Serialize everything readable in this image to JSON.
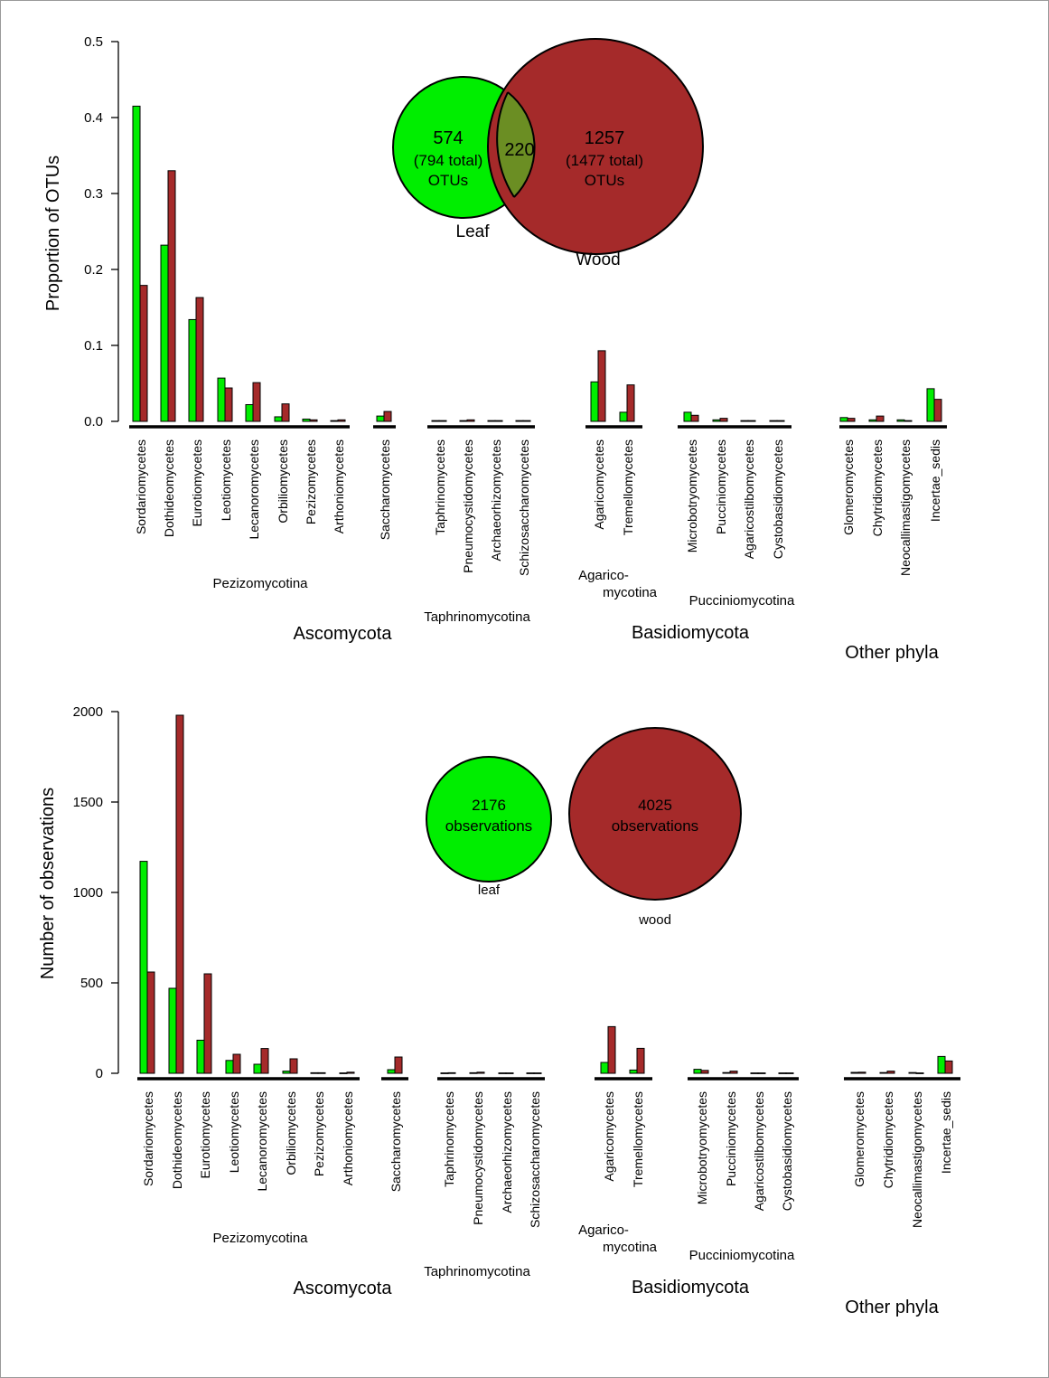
{
  "colors": {
    "leaf": "#00ee00",
    "wood": "#a52a2a",
    "overlap": "#6b8e23"
  },
  "chart_data": [
    {
      "type": "bar",
      "title": "",
      "ylabel": "Proportion of OTUs",
      "ylim": [
        0,
        0.5
      ],
      "yticks": [
        "0.0",
        "0.1",
        "0.2",
        "0.3",
        "0.4",
        "0.5"
      ],
      "series_names": [
        "Leaf",
        "Wood"
      ],
      "categories": [
        "Sordariomycetes",
        "Dothideomycetes",
        "Eurotiomycetes",
        "Leotiomycetes",
        "Lecanoromycetes",
        "Orbiliomycetes",
        "Pezizomycetes",
        "Arthoniomycetes",
        "Saccharomycetes",
        "Taphrinomycetes",
        "Pneumocystidomycetes",
        "Archaeorhizomycetes",
        "Schizosaccharomycetes",
        "Agaricomycetes",
        "Tremellomycetes",
        "Microbotryomycetes",
        "Pucciniomycetes",
        "Agaricostilbomycetes",
        "Cystobasidiomycetes",
        "Glomeromycetes",
        "Chytridiomycetes",
        "Neocallimastigomycetes",
        "Incertae_sedis"
      ],
      "series": [
        {
          "values": [
            0.415,
            0.232,
            0.134,
            0.057,
            0.022,
            0.006,
            0.003,
            0.001,
            0.007,
            0.001,
            0.001,
            0.001,
            0.001,
            0.052,
            0.012,
            0.012,
            0.002,
            0.001,
            0.001,
            0.005,
            0.002,
            0.002,
            0.043
          ]
        },
        {
          "values": [
            0.179,
            0.33,
            0.163,
            0.044,
            0.051,
            0.023,
            0.002,
            0.002,
            0.013,
            0.001,
            0.002,
            0.001,
            0.001,
            0.093,
            0.048,
            0.008,
            0.004,
            0.001,
            0.001,
            0.004,
            0.007,
            0.001,
            0.029
          ]
        }
      ],
      "subgroups": [
        {
          "label": "Pezizomycotina"
        },
        {
          "label": "Taphrinomycotina"
        },
        {
          "label_lines": [
            "Agarico-",
            "mycotina"
          ]
        },
        {
          "label": "Pucciniomycotina"
        }
      ],
      "phyla": [
        "Ascomycota",
        "Basidiomycota",
        "Other phyla"
      ],
      "venn": {
        "leaf_only": "574",
        "leaf_total": "(794 total)",
        "leaf_unit": "OTUs",
        "shared": "220",
        "wood_only": "1257",
        "wood_total": "(1477 total)",
        "wood_unit": "OTUs",
        "leaf_label": "Leaf",
        "wood_label": "Wood"
      }
    },
    {
      "type": "bar",
      "title": "",
      "ylabel": "Number of observations",
      "ylim": [
        0,
        2000
      ],
      "yticks": [
        "0",
        "500",
        "1000",
        "1500",
        "2000"
      ],
      "series_names": [
        "leaf",
        "wood"
      ],
      "categories": [
        "Sordariomycetes",
        "Dothideomycetes",
        "Eurotiomycetes",
        "Leotiomycetes",
        "Lecanoromycetes",
        "Orbiliomycetes",
        "Pezizomycetes",
        "Arthoniomycetes",
        "Saccharomycetes",
        "Taphrinomycetes",
        "Pneumocystidomycetes",
        "Archaeorhizomycetes",
        "Schizosaccharomycetes",
        "Agaricomycetes",
        "Tremellomycetes",
        "Microbotryomycetes",
        "Pucciniomycetes",
        "Agaricostilbomycetes",
        "Cystobasidiomycetes",
        "Glomeromycetes",
        "Chytridiomycetes",
        "Neocallimastigomycetes",
        "Incertae_sedis"
      ],
      "series": [
        {
          "values": [
            1172,
            470,
            183,
            71,
            50,
            12,
            3,
            2,
            20,
            2,
            3,
            2,
            2,
            60,
            18,
            22,
            4,
            2,
            2,
            5,
            4,
            4,
            93
          ]
        },
        {
          "values": [
            560,
            1980,
            550,
            105,
            137,
            80,
            3,
            6,
            90,
            3,
            6,
            2,
            2,
            258,
            138,
            16,
            12,
            2,
            2,
            6,
            12,
            2,
            68
          ]
        }
      ],
      "subgroups": [
        {
          "label": "Pezizomycotina"
        },
        {
          "label": "Taphrinomycotina"
        },
        {
          "label_lines": [
            "Agarico-",
            "mycotina"
          ]
        },
        {
          "label": "Pucciniomycotina"
        }
      ],
      "phyla": [
        "Ascomycota",
        "Basidiomycota",
        "Other phyla"
      ],
      "circles": {
        "leaf_count": "2176",
        "leaf_unit": "observations",
        "leaf_label": "leaf",
        "wood_count": "4025",
        "wood_unit": "observations",
        "wood_label": "wood"
      }
    }
  ]
}
